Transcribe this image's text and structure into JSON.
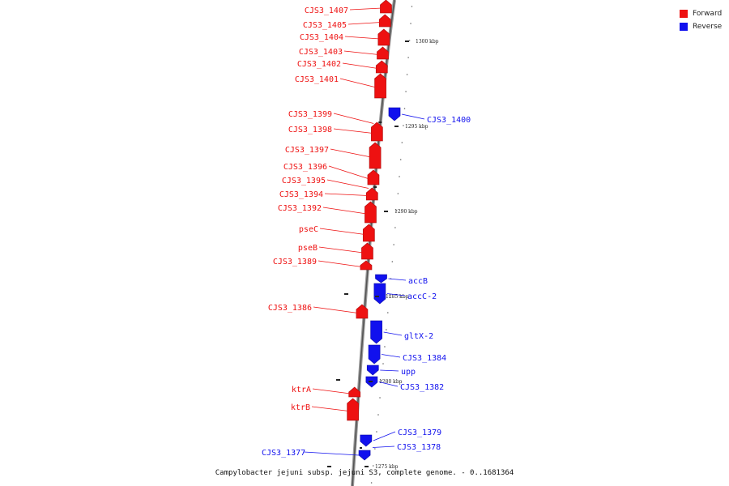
{
  "colors": {
    "forward": "#ee1111",
    "reverse": "#1111ee"
  },
  "legend": {
    "forward_label": "Forward",
    "reverse_label": "Reverse"
  },
  "caption": "Campylobacter jejuni subsp. jejuni S3, complete genome. - 0..1681364",
  "ticks": [
    "1300 kbp",
    "1295 kbp",
    "1290 kbp",
    "1285 kbp",
    "1280 kbp",
    "1275 kbp"
  ],
  "forward_genes": [
    "CJS3_1407",
    "CJS3_1405",
    "CJS3_1404",
    "CJS3_1403",
    "CJS3_1402",
    "CJS3_1401",
    "CJS3_1399",
    "CJS3_1398",
    "CJS3_1397",
    "CJS3_1396",
    "CJS3_1395",
    "CJS3_1394",
    "CJS3_1392",
    "pseC",
    "pseB",
    "CJS3_1389",
    "CJS3_1386",
    "ktrA",
    "ktrB"
  ],
  "reverse_genes": [
    "CJS3_1400",
    "accB",
    "accC-2",
    "gltX-2",
    "CJS3_1384",
    "upp",
    "CJS3_1382",
    "CJS3_1379",
    "CJS3_1378",
    "CJS3_1377"
  ]
}
